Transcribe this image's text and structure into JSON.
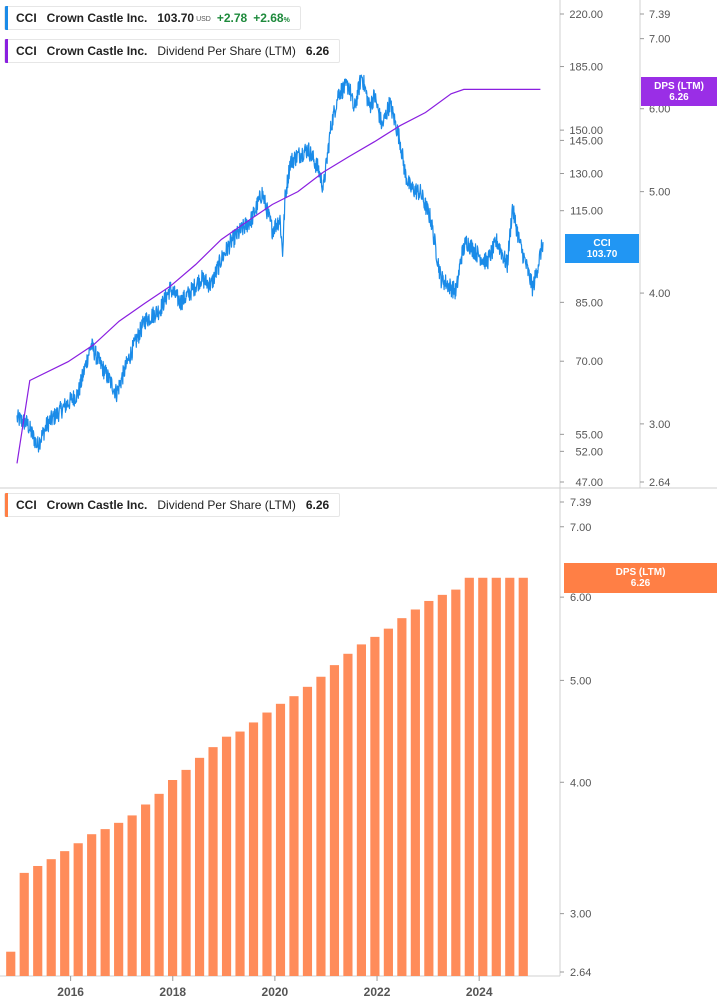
{
  "legend_price": {
    "ticker": "CCI",
    "company": "Crown Castle Inc.",
    "price": "103.70",
    "currency": "USD",
    "change": "+2.78",
    "change_pct": "+2.68",
    "pct_sign": "%"
  },
  "legend_dps_line": {
    "ticker": "CCI",
    "company": "Crown Castle Inc.",
    "metric": "Dividend Per Share (LTM)",
    "value": "6.26"
  },
  "legend_dps_bar": {
    "ticker": "CCI",
    "company": "Crown Castle Inc.",
    "metric": "Dividend Per Share (LTM)",
    "value": "6.26"
  },
  "tags": {
    "price_label": "CCI",
    "price_value": "103.70",
    "dps_top_label": "DPS (LTM)",
    "dps_top_value": "6.26",
    "dps_bottom_label": "DPS (LTM)",
    "dps_bottom_value": "6.26"
  },
  "colors": {
    "price_line": "#1a8be8",
    "dps_line": "#8a1fe0",
    "bars": "#ff8c5a",
    "bar_tag": "#ff7f45",
    "price_tag": "#2196f3",
    "dps_tag": "#9a2ee6",
    "gain": "#1e8a3c"
  },
  "chart_data": [
    {
      "type": "line",
      "scale": "log",
      "x_tick_labels": [
        "2016",
        "2018",
        "2020",
        "2022",
        "2024"
      ],
      "y_tick_labels": [
        "220.00",
        "185.00",
        "150.00",
        "145.00",
        "130.00",
        "115.00",
        "85.00",
        "70.00",
        "55.00",
        "52.00",
        "47.00"
      ],
      "secondary_y_tick_labels": [
        "7.39",
        "7.00",
        "6.00",
        "5.00",
        "4.00",
        "3.00",
        "2.64"
      ],
      "ylim": [
        47,
        220
      ],
      "secondary_ylim": [
        2.64,
        7.39
      ],
      "series": [
        {
          "name": "CCI",
          "axis": "left",
          "x": [
            2015.0,
            2015.2,
            2015.4,
            2015.6,
            2015.9,
            2016.2,
            2016.45,
            2016.6,
            2016.8,
            2016.95,
            2017.2,
            2017.5,
            2017.8,
            2018.0,
            2018.2,
            2018.4,
            2018.6,
            2018.8,
            2019.0,
            2019.2,
            2019.4,
            2019.6,
            2019.8,
            2020.0,
            2020.15,
            2020.2,
            2020.25,
            2020.35,
            2020.5,
            2020.7,
            2020.9,
            2021.0,
            2021.15,
            2021.3,
            2021.5,
            2021.6,
            2021.75,
            2021.9,
            2022.0,
            2022.15,
            2022.3,
            2022.5,
            2022.6,
            2022.7,
            2022.9,
            2023.1,
            2023.3,
            2023.6,
            2023.7,
            2023.8,
            2024.0,
            2024.2,
            2024.4,
            2024.6,
            2024.7,
            2024.85,
            2025.1,
            2025.2,
            2025.3
          ],
          "values": [
            58,
            57,
            53,
            57,
            60,
            63,
            74,
            70,
            66,
            63,
            71,
            80,
            83,
            89,
            85,
            88,
            92,
            90,
            98,
            104,
            108,
            112,
            122,
            108,
            112,
            100,
            120,
            135,
            138,
            141,
            132,
            124,
            152,
            170,
            174,
            160,
            180,
            162,
            168,
            152,
            164,
            145,
            130,
            124,
            122,
            112,
            92,
            88,
            99,
            104,
            100,
            97,
            104,
            96,
            116,
            103,
            89,
            96,
            103.7
          ]
        },
        {
          "name": "Dividend Per Share (LTM)",
          "axis": "right",
          "x": [
            2015.0,
            2015.25,
            2016.0,
            2016.5,
            2017.0,
            2017.5,
            2018.0,
            2018.5,
            2019.0,
            2019.5,
            2020.0,
            2020.5,
            2021.0,
            2021.5,
            2022.0,
            2022.5,
            2023.0,
            2023.5,
            2023.75,
            2024.0,
            2024.5,
            2025.0,
            2025.25
          ],
          "values": [
            2.75,
            3.3,
            3.44,
            3.57,
            3.76,
            3.91,
            4.06,
            4.26,
            4.5,
            4.68,
            4.86,
            5.0,
            5.22,
            5.4,
            5.58,
            5.78,
            5.95,
            6.2,
            6.26,
            6.26,
            6.26,
            6.26,
            6.26
          ]
        }
      ]
    },
    {
      "type": "bar",
      "scale": "log",
      "title": "",
      "x_tick_labels": [
        "2016",
        "2018",
        "2020",
        "2022",
        "2024"
      ],
      "y_tick_labels": [
        "7.39",
        "7.00",
        "6.00",
        "5.00",
        "4.00",
        "3.00",
        "2.64"
      ],
      "ylim": [
        2.64,
        7.39
      ],
      "categories": [
        "2015-Q2",
        "2015-Q3",
        "2015-Q4",
        "2016-Q1",
        "2016-Q2",
        "2016-Q3",
        "2016-Q4",
        "2017-Q1",
        "2017-Q2",
        "2017-Q3",
        "2017-Q4",
        "2018-Q1",
        "2018-Q2",
        "2018-Q3",
        "2018-Q4",
        "2019-Q1",
        "2019-Q2",
        "2019-Q3",
        "2019-Q4",
        "2020-Q1",
        "2020-Q2",
        "2020-Q3",
        "2020-Q4",
        "2021-Q1",
        "2021-Q2",
        "2021-Q3",
        "2021-Q4",
        "2022-Q1",
        "2022-Q2",
        "2022-Q3",
        "2022-Q4",
        "2023-Q1",
        "2023-Q2",
        "2023-Q3",
        "2023-Q4",
        "2024-Q1",
        "2024-Q2",
        "2024-Q3",
        "2024-Q4"
      ],
      "series": [
        {
          "name": "Dividend Per Share (LTM)",
          "values": [
            2.76,
            3.28,
            3.33,
            3.38,
            3.44,
            3.5,
            3.57,
            3.61,
            3.66,
            3.72,
            3.81,
            3.9,
            4.02,
            4.11,
            4.22,
            4.32,
            4.42,
            4.47,
            4.56,
            4.66,
            4.75,
            4.83,
            4.93,
            5.04,
            5.17,
            5.3,
            5.41,
            5.5,
            5.6,
            5.73,
            5.84,
            5.95,
            6.03,
            6.1,
            6.26,
            6.26,
            6.26,
            6.26,
            6.26
          ]
        }
      ]
    }
  ]
}
